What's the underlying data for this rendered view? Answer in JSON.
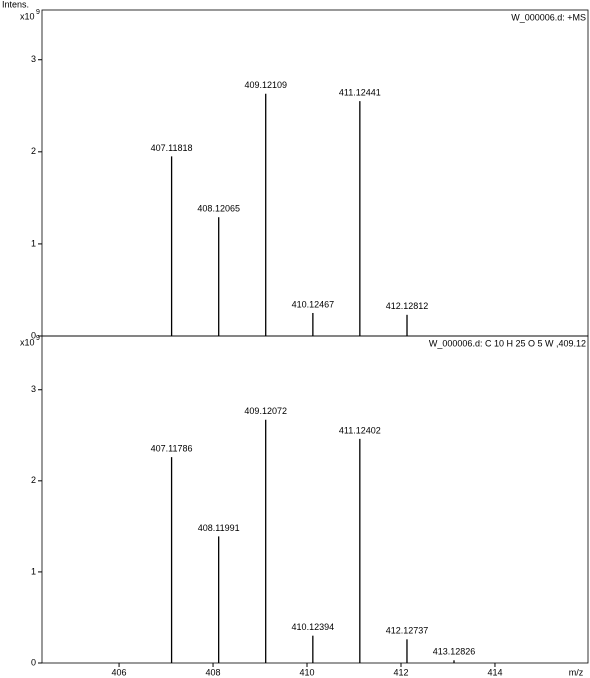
{
  "chart_data": [
    {
      "type": "stick",
      "title": "W_000006.d: +MS",
      "y_label": "Intens.",
      "y_multiplier": "x10",
      "y_multiplier_exponent": "9",
      "x": [
        407.11818,
        408.12065,
        409.12109,
        410.12467,
        411.12441,
        412.12812
      ],
      "values": [
        1.95,
        1.29,
        2.63,
        0.25,
        2.55,
        0.23
      ],
      "color": "#000000",
      "xlim": [
        404.36,
        415.98
      ],
      "ylim": [
        0,
        3.54
      ],
      "yticks": [
        0,
        1,
        2,
        3
      ]
    },
    {
      "type": "stick",
      "title": "W_000006.d: C 10 H 25 O 5 W ,409.12",
      "y_multiplier": "x10",
      "y_multiplier_exponent": "9",
      "x_label": "m/z",
      "x": [
        407.11786,
        408.11991,
        409.12072,
        410.12394,
        411.12402,
        412.12737,
        413.12826
      ],
      "values": [
        2.26,
        1.39,
        2.67,
        0.3,
        2.46,
        0.26,
        0.03
      ],
      "color": "#000000",
      "xlim": [
        404.36,
        415.98
      ],
      "ylim": [
        0,
        3.59
      ],
      "yticks": [
        0,
        1,
        2,
        3
      ],
      "xticks": [
        406,
        408,
        410,
        412,
        414
      ]
    }
  ]
}
